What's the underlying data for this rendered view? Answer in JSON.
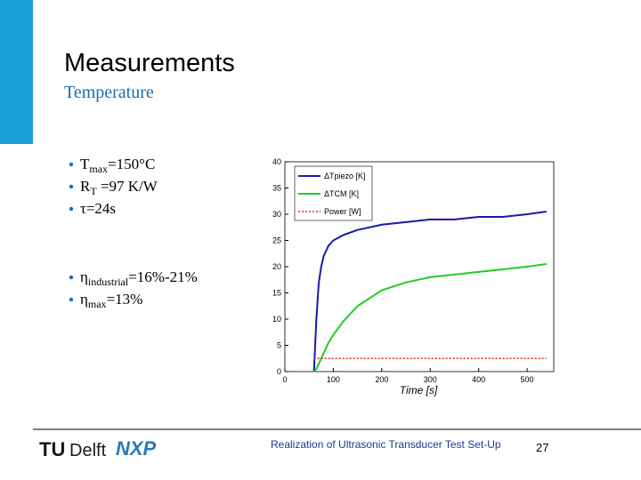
{
  "slide": {
    "title": "Measurements",
    "subtitle": "Temperature",
    "bullets": [
      {
        "main": "T",
        "sub": "max",
        "rest": "=150°C"
      },
      {
        "main": "R",
        "sub": "T",
        "rest": " =97 K/W"
      },
      {
        "main": "τ=24s"
      },
      {
        "main": "η",
        "sub": "industrial",
        "rest": "=16%-21%"
      },
      {
        "main": "η",
        "sub": "max",
        "rest": "=13%"
      }
    ],
    "footer": {
      "text": "Realization of Ultrasonic Transducer Test Set-Up",
      "page": "27",
      "logo_tu": "TU",
      "logo_delft": "Delft",
      "logo_nxp": "NXP"
    }
  },
  "chart_data": {
    "type": "line",
    "xlabel": "Time [s]",
    "x": [
      60,
      65,
      70,
      75,
      80,
      90,
      100,
      120,
      150,
      200,
      250,
      300,
      350,
      400,
      450,
      500,
      540
    ],
    "series": [
      {
        "name": "ΔTpiezo [K]",
        "color": "#1a1aa6",
        "linestyle": "solid",
        "values": [
          0,
          10,
          17,
          20,
          22,
          24,
          25,
          26,
          27,
          28,
          28.5,
          29,
          29,
          29.5,
          29.5,
          30,
          30.5
        ]
      },
      {
        "name": "ΔTCM [K]",
        "color": "#22cc22",
        "linestyle": "solid",
        "values": [
          0,
          0.5,
          1.5,
          2.5,
          3.5,
          5.5,
          7,
          9.5,
          12.5,
          15.5,
          17,
          18,
          18.5,
          19,
          19.5,
          20,
          20.5
        ]
      },
      {
        "name": "Power [W]",
        "color": "#dd2222",
        "linestyle": "dotted",
        "values": [
          2.5,
          2.5,
          2.5,
          2.5,
          2.5,
          2.5,
          2.5,
          2.5,
          2.5,
          2.5,
          2.5,
          2.5,
          2.5,
          2.5,
          2.5,
          2.5,
          2.5
        ]
      }
    ],
    "xlim": [
      0,
      555
    ],
    "xticks": [
      0,
      100,
      200,
      300,
      400,
      500
    ],
    "ylim": [
      0,
      40
    ],
    "yticks": [
      0,
      5,
      10,
      15,
      20,
      25,
      30,
      35,
      40
    ],
    "grid": false
  }
}
